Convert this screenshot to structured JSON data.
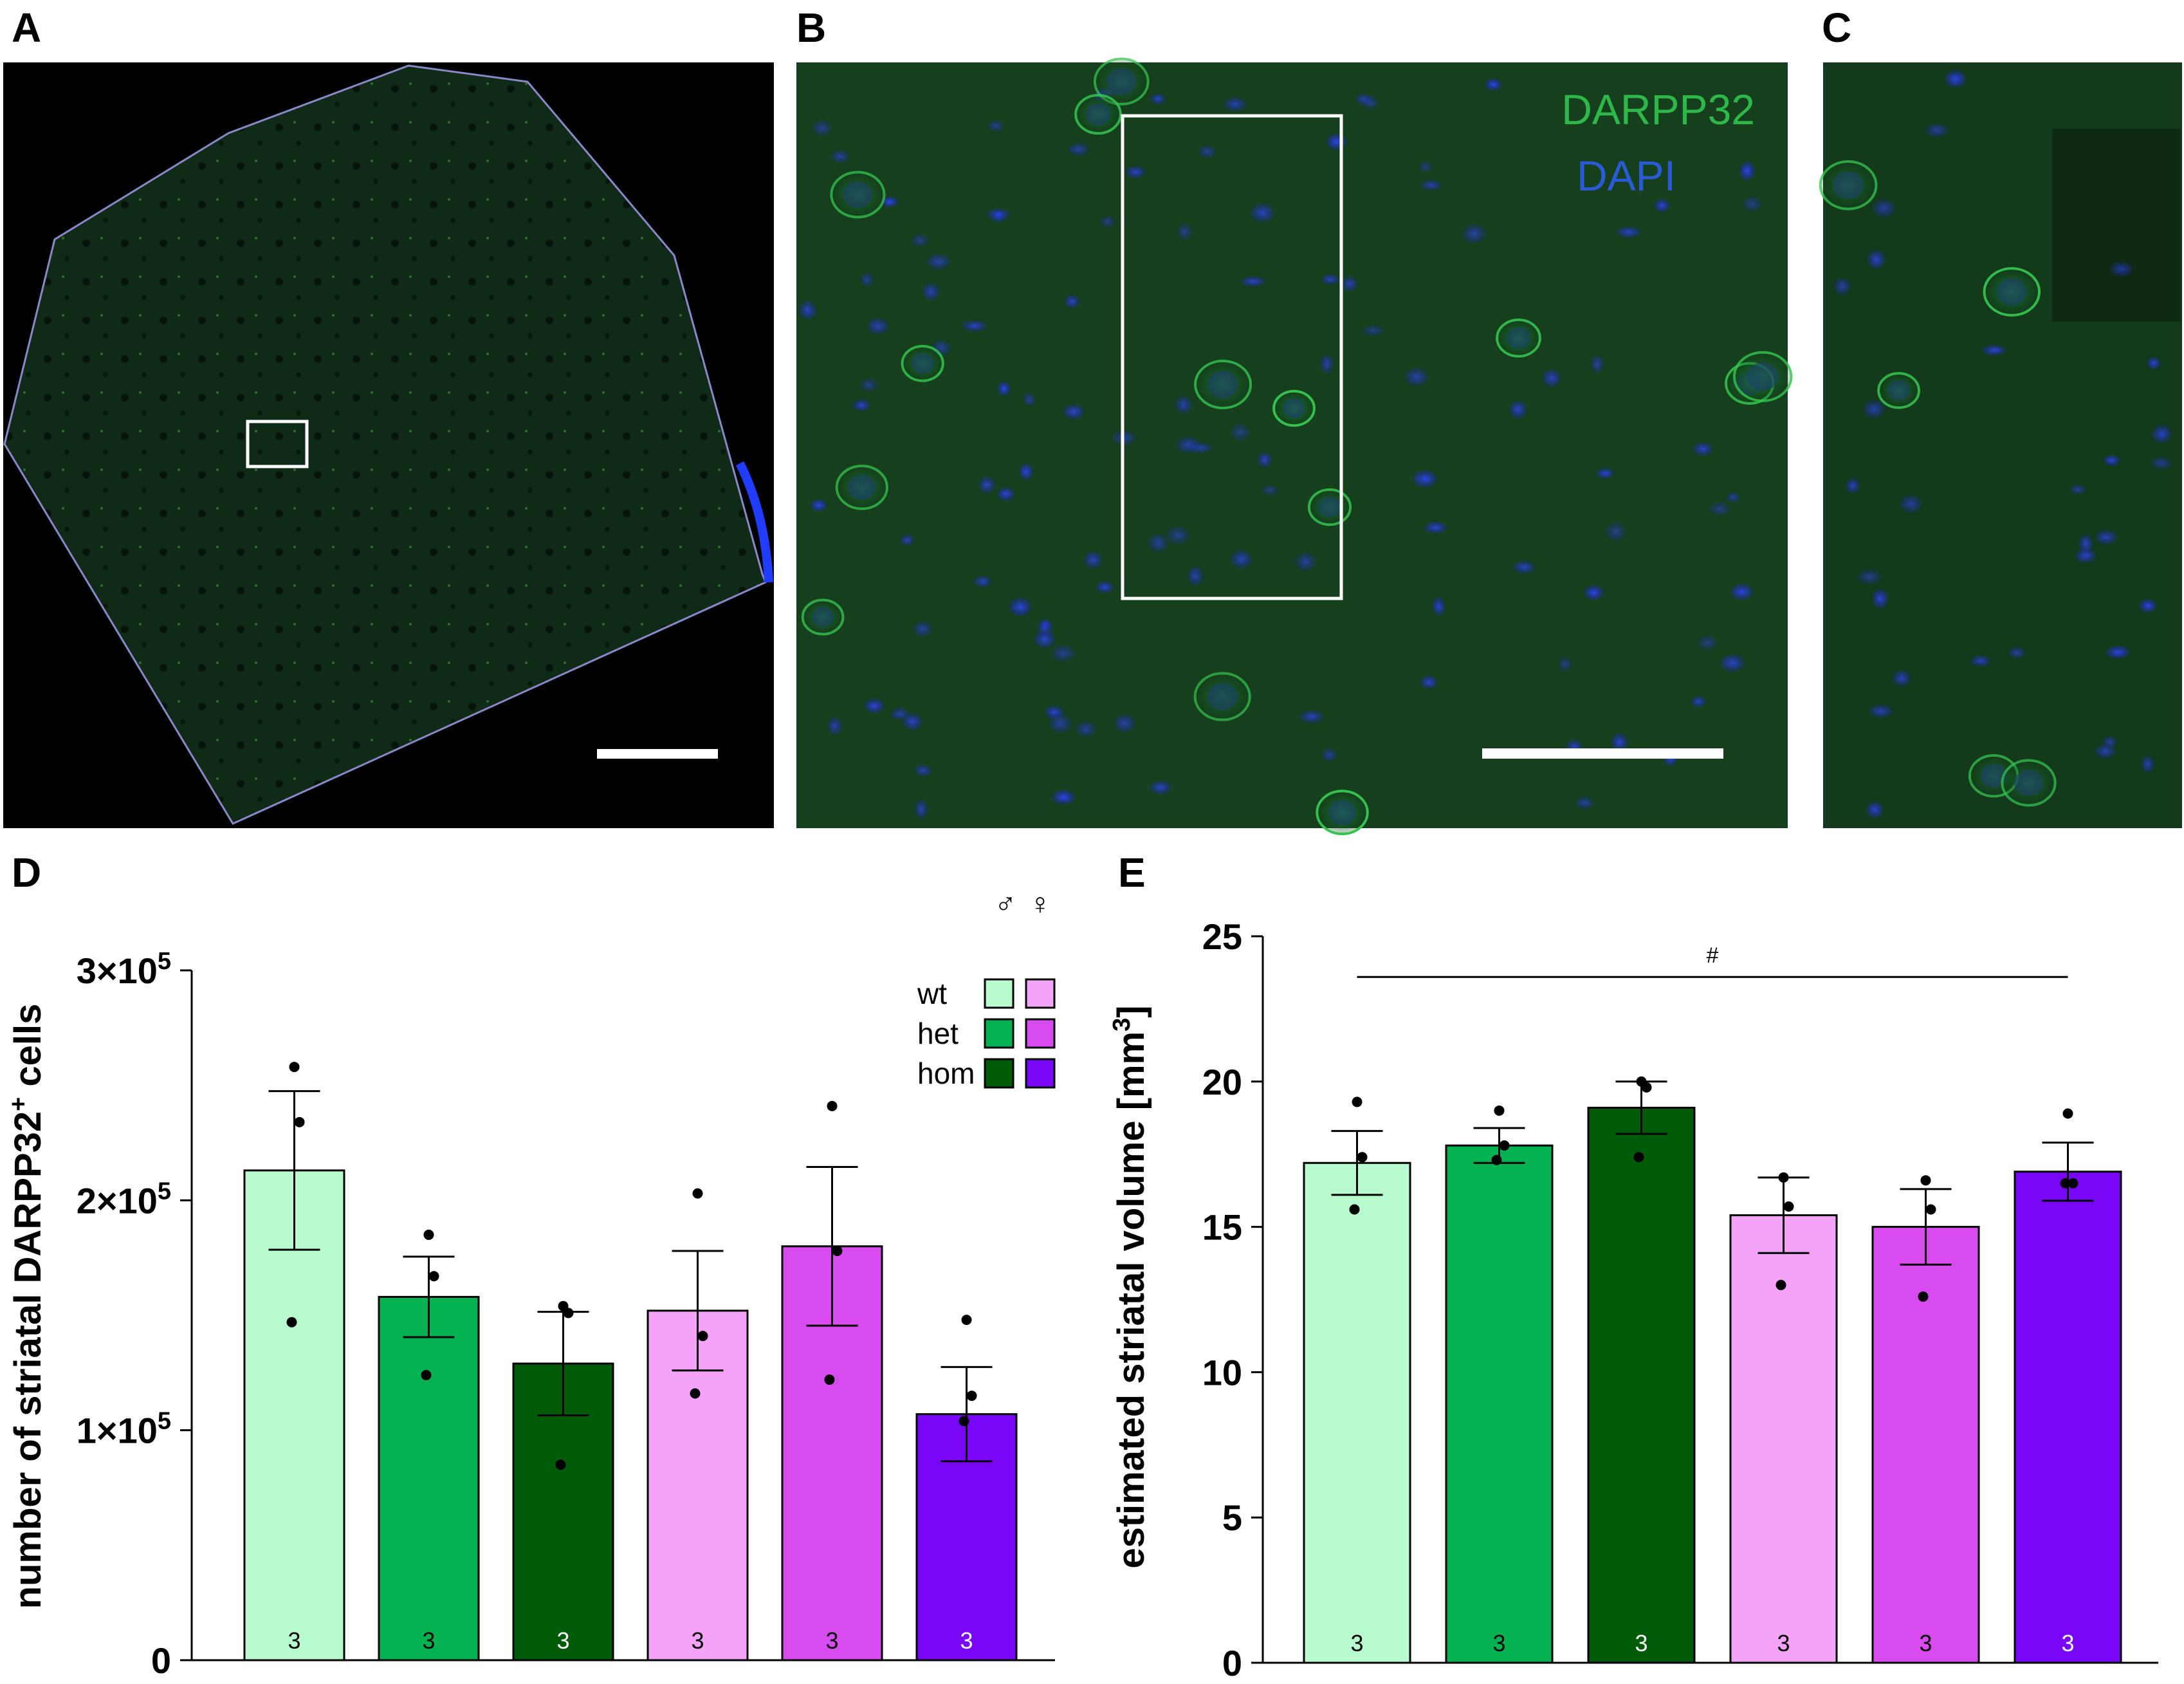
{
  "panels": {
    "a": {
      "letter": "A"
    },
    "b": {
      "letter": "B",
      "labels": [
        {
          "text": "DARPP32",
          "color": "#2eb84a"
        },
        {
          "text": "DAPI",
          "color": "#2a5bd6"
        }
      ]
    },
    "c": {
      "letter": "C"
    },
    "d": {
      "letter": "D"
    },
    "e": {
      "letter": "E"
    }
  },
  "legend": {
    "sex_symbols": [
      "♂",
      "♀"
    ],
    "rows": [
      {
        "label": "wt",
        "male_color": "#b7fbcf",
        "female_color": "#f4a3f9"
      },
      {
        "label": "het",
        "male_color": "#05b252",
        "female_color": "#d84cef"
      },
      {
        "label": "hom",
        "male_color": "#005b08",
        "female_color": "#7a06f7"
      }
    ]
  },
  "bar_colors": [
    "#b7fbcf",
    "#05b252",
    "#005b08",
    "#f4a3f9",
    "#d84cef",
    "#7a06f7"
  ],
  "n_label_colors": [
    "#000000",
    "#000000",
    "#ffffff",
    "#000000",
    "#000000",
    "#ffffff"
  ],
  "chart_data": [
    {
      "panel": "D",
      "type": "bar",
      "categories": [
        "wt ♂",
        "het ♂",
        "hom ♂",
        "wt ♀",
        "het ♀",
        "hom ♀"
      ],
      "values": [
        213000,
        158000,
        129000,
        152000,
        180000,
        107000
      ],
      "sem": [
        34500,
        17500,
        22500,
        26000,
        34500,
        20500
      ],
      "points": [
        [
          258000,
          234000,
          147000
        ],
        [
          185000,
          167000,
          124000
        ],
        [
          154000,
          151000,
          85000
        ],
        [
          203000,
          141000,
          116000
        ],
        [
          241000,
          178000,
          122000
        ],
        [
          148000,
          115000,
          104000
        ]
      ],
      "n": [
        "3",
        "3",
        "3",
        "3",
        "3",
        "3"
      ],
      "ylabel_main": "number of striatal DARPP32",
      "ylabel_sup": "+",
      "ylabel_tail": " cells",
      "ylim": [
        0,
        300000
      ],
      "yticks": [
        {
          "value": 0,
          "label": "0"
        },
        {
          "value": 100000,
          "label": "1×10",
          "exp": "5"
        },
        {
          "value": 200000,
          "label": "2×10",
          "exp": "5"
        },
        {
          "value": 300000,
          "label": "3×10",
          "exp": "5"
        }
      ]
    },
    {
      "panel": "E",
      "type": "bar",
      "categories": [
        "wt ♂",
        "het ♂",
        "hom ♂",
        "wt ♀",
        "het ♀",
        "hom ♀"
      ],
      "values": [
        17.2,
        17.8,
        19.1,
        15.4,
        15.0,
        16.9
      ],
      "sem": [
        1.1,
        0.6,
        0.9,
        1.3,
        1.3,
        1.0
      ],
      "points": [
        [
          19.3,
          17.4,
          15.6
        ],
        [
          19.0,
          17.8,
          17.3
        ],
        [
          20.0,
          19.8,
          17.4
        ],
        [
          16.7,
          15.7,
          13.0
        ],
        [
          16.6,
          15.6,
          12.6
        ],
        [
          18.9,
          16.5,
          16.5
        ]
      ],
      "n": [
        "3",
        "3",
        "3",
        "3",
        "3",
        "3"
      ],
      "ylabel_main": "estimated striatal volume [mm",
      "ylabel_sup": "3",
      "ylabel_tail": "]",
      "ylim": [
        0,
        25
      ],
      "yticks": [
        {
          "value": 0,
          "label": "0"
        },
        {
          "value": 5,
          "label": "5"
        },
        {
          "value": 10,
          "label": "10"
        },
        {
          "value": 15,
          "label": "15"
        },
        {
          "value": 20,
          "label": "20"
        },
        {
          "value": 25,
          "label": "25"
        }
      ],
      "significance": {
        "label": "#",
        "from_bar": 0,
        "to_bar": 5,
        "y": 23.6
      }
    }
  ]
}
